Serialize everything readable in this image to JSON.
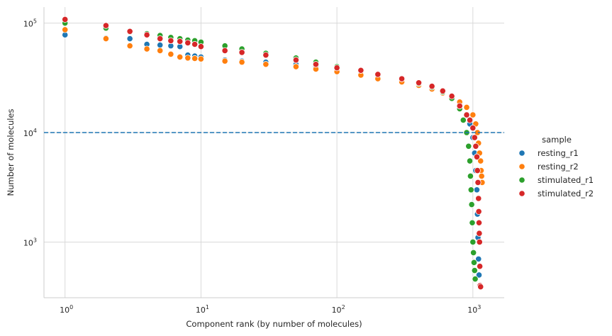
{
  "chart_data": {
    "type": "scatter",
    "title": "",
    "xlabel": "Component rank (by number of molecules)",
    "ylabel": "Number of molecules",
    "xscale": "log",
    "yscale": "log",
    "xlim": [
      0.7,
      1700
    ],
    "ylim": [
      310,
      140000
    ],
    "grid": true,
    "x_ticks": [
      {
        "value": 1,
        "base": "10",
        "exp": "0"
      },
      {
        "value": 10,
        "base": "10",
        "exp": "1"
      },
      {
        "value": 100,
        "base": "10",
        "exp": "2"
      },
      {
        "value": 1000,
        "base": "10",
        "exp": "3"
      }
    ],
    "y_ticks": [
      {
        "value": 1000,
        "base": "10",
        "exp": "3"
      },
      {
        "value": 10000,
        "base": "10",
        "exp": "4"
      },
      {
        "value": 100000,
        "base": "10",
        "exp": "5"
      }
    ],
    "threshold_line": {
      "y": 10000,
      "color": "#1f77b4",
      "style": "dashed"
    },
    "legend": {
      "title": "sample",
      "placement": "right"
    },
    "series": [
      {
        "name": "resting_r1",
        "color": "#1f77b4",
        "points": [
          [
            1,
            78000
          ],
          [
            2,
            73000
          ],
          [
            3,
            72000
          ],
          [
            4,
            64000
          ],
          [
            5,
            63000
          ],
          [
            6,
            62000
          ],
          [
            7,
            61000
          ],
          [
            8,
            51000
          ],
          [
            9,
            50000
          ],
          [
            10,
            49000
          ],
          [
            15,
            46000
          ],
          [
            20,
            45000
          ],
          [
            30,
            44000
          ],
          [
            50,
            42000
          ],
          [
            70,
            40000
          ],
          [
            100,
            38000
          ],
          [
            150,
            36000
          ],
          [
            200,
            33000
          ],
          [
            300,
            31000
          ],
          [
            400,
            28000
          ],
          [
            500,
            26000
          ],
          [
            600,
            24000
          ],
          [
            700,
            21000
          ],
          [
            800,
            18000
          ],
          [
            900,
            14500
          ],
          [
            950,
            12000
          ],
          [
            1000,
            9000
          ],
          [
            1030,
            6500
          ],
          [
            1050,
            4500
          ],
          [
            1070,
            3000
          ],
          [
            1080,
            1800
          ],
          [
            1090,
            1100
          ],
          [
            1100,
            700
          ],
          [
            1110,
            500
          ],
          [
            1120,
            400
          ]
        ]
      },
      {
        "name": "resting_r2",
        "color": "#ff7f0e",
        "points": [
          [
            1,
            87000
          ],
          [
            2,
            72000
          ],
          [
            3,
            62000
          ],
          [
            4,
            58000
          ],
          [
            5,
            56000
          ],
          [
            6,
            52000
          ],
          [
            7,
            49000
          ],
          [
            8,
            48000
          ],
          [
            9,
            47500
          ],
          [
            10,
            47000
          ],
          [
            15,
            45000
          ],
          [
            20,
            44000
          ],
          [
            30,
            42000
          ],
          [
            50,
            40000
          ],
          [
            70,
            38000
          ],
          [
            100,
            36000
          ],
          [
            150,
            33500
          ],
          [
            200,
            31000
          ],
          [
            300,
            29000
          ],
          [
            400,
            27000
          ],
          [
            500,
            25000
          ],
          [
            600,
            23000
          ],
          [
            700,
            21000
          ],
          [
            800,
            19000
          ],
          [
            900,
            17000
          ],
          [
            1000,
            14500
          ],
          [
            1050,
            12000
          ],
          [
            1080,
            10000
          ],
          [
            1100,
            8000
          ],
          [
            1120,
            6500
          ],
          [
            1140,
            5500
          ],
          [
            1150,
            4500
          ],
          [
            1160,
            4000
          ],
          [
            1170,
            3500
          ]
        ]
      },
      {
        "name": "stimulated_r1",
        "color": "#2ca02c",
        "points": [
          [
            1,
            100000
          ],
          [
            2,
            90000
          ],
          [
            3,
            83000
          ],
          [
            4,
            80000
          ],
          [
            5,
            77000
          ],
          [
            6,
            74000
          ],
          [
            7,
            72000
          ],
          [
            8,
            70000
          ],
          [
            9,
            69000
          ],
          [
            10,
            67000
          ],
          [
            15,
            62000
          ],
          [
            20,
            58000
          ],
          [
            30,
            53000
          ],
          [
            50,
            48000
          ],
          [
            70,
            44000
          ],
          [
            100,
            40000
          ],
          [
            150,
            37000
          ],
          [
            200,
            34000
          ],
          [
            300,
            31000
          ],
          [
            400,
            28000
          ],
          [
            500,
            26000
          ],
          [
            600,
            23500
          ],
          [
            700,
            20500
          ],
          [
            800,
            16500
          ],
          [
            850,
            13000
          ],
          [
            900,
            10000
          ],
          [
            930,
            7500
          ],
          [
            950,
            5500
          ],
          [
            960,
            4000
          ],
          [
            970,
            3000
          ],
          [
            980,
            2200
          ],
          [
            990,
            1500
          ],
          [
            1000,
            1000
          ],
          [
            1010,
            800
          ],
          [
            1020,
            650
          ],
          [
            1030,
            550
          ],
          [
            1040,
            460
          ]
        ]
      },
      {
        "name": "stimulated_r2",
        "color": "#d62728",
        "points": [
          [
            1,
            108000
          ],
          [
            2,
            95000
          ],
          [
            3,
            84000
          ],
          [
            4,
            78000
          ],
          [
            5,
            72000
          ],
          [
            6,
            69000
          ],
          [
            7,
            68000
          ],
          [
            8,
            66000
          ],
          [
            9,
            64000
          ],
          [
            10,
            61000
          ],
          [
            15,
            56000
          ],
          [
            20,
            54000
          ],
          [
            30,
            51000
          ],
          [
            50,
            46000
          ],
          [
            70,
            42000
          ],
          [
            100,
            39000
          ],
          [
            150,
            37000
          ],
          [
            200,
            34000
          ],
          [
            300,
            31000
          ],
          [
            400,
            28500
          ],
          [
            500,
            26500
          ],
          [
            600,
            24000
          ],
          [
            700,
            21500
          ],
          [
            800,
            17500
          ],
          [
            900,
            14500
          ],
          [
            950,
            13000
          ],
          [
            1000,
            11000
          ],
          [
            1030,
            9000
          ],
          [
            1050,
            7500
          ],
          [
            1070,
            6000
          ],
          [
            1080,
            4500
          ],
          [
            1090,
            3500
          ],
          [
            1100,
            2500
          ],
          [
            1105,
            1900
          ],
          [
            1110,
            1500
          ],
          [
            1115,
            1200
          ],
          [
            1120,
            1000
          ],
          [
            1125,
            600
          ],
          [
            1130,
            400
          ],
          [
            1140,
            390
          ]
        ]
      }
    ]
  }
}
